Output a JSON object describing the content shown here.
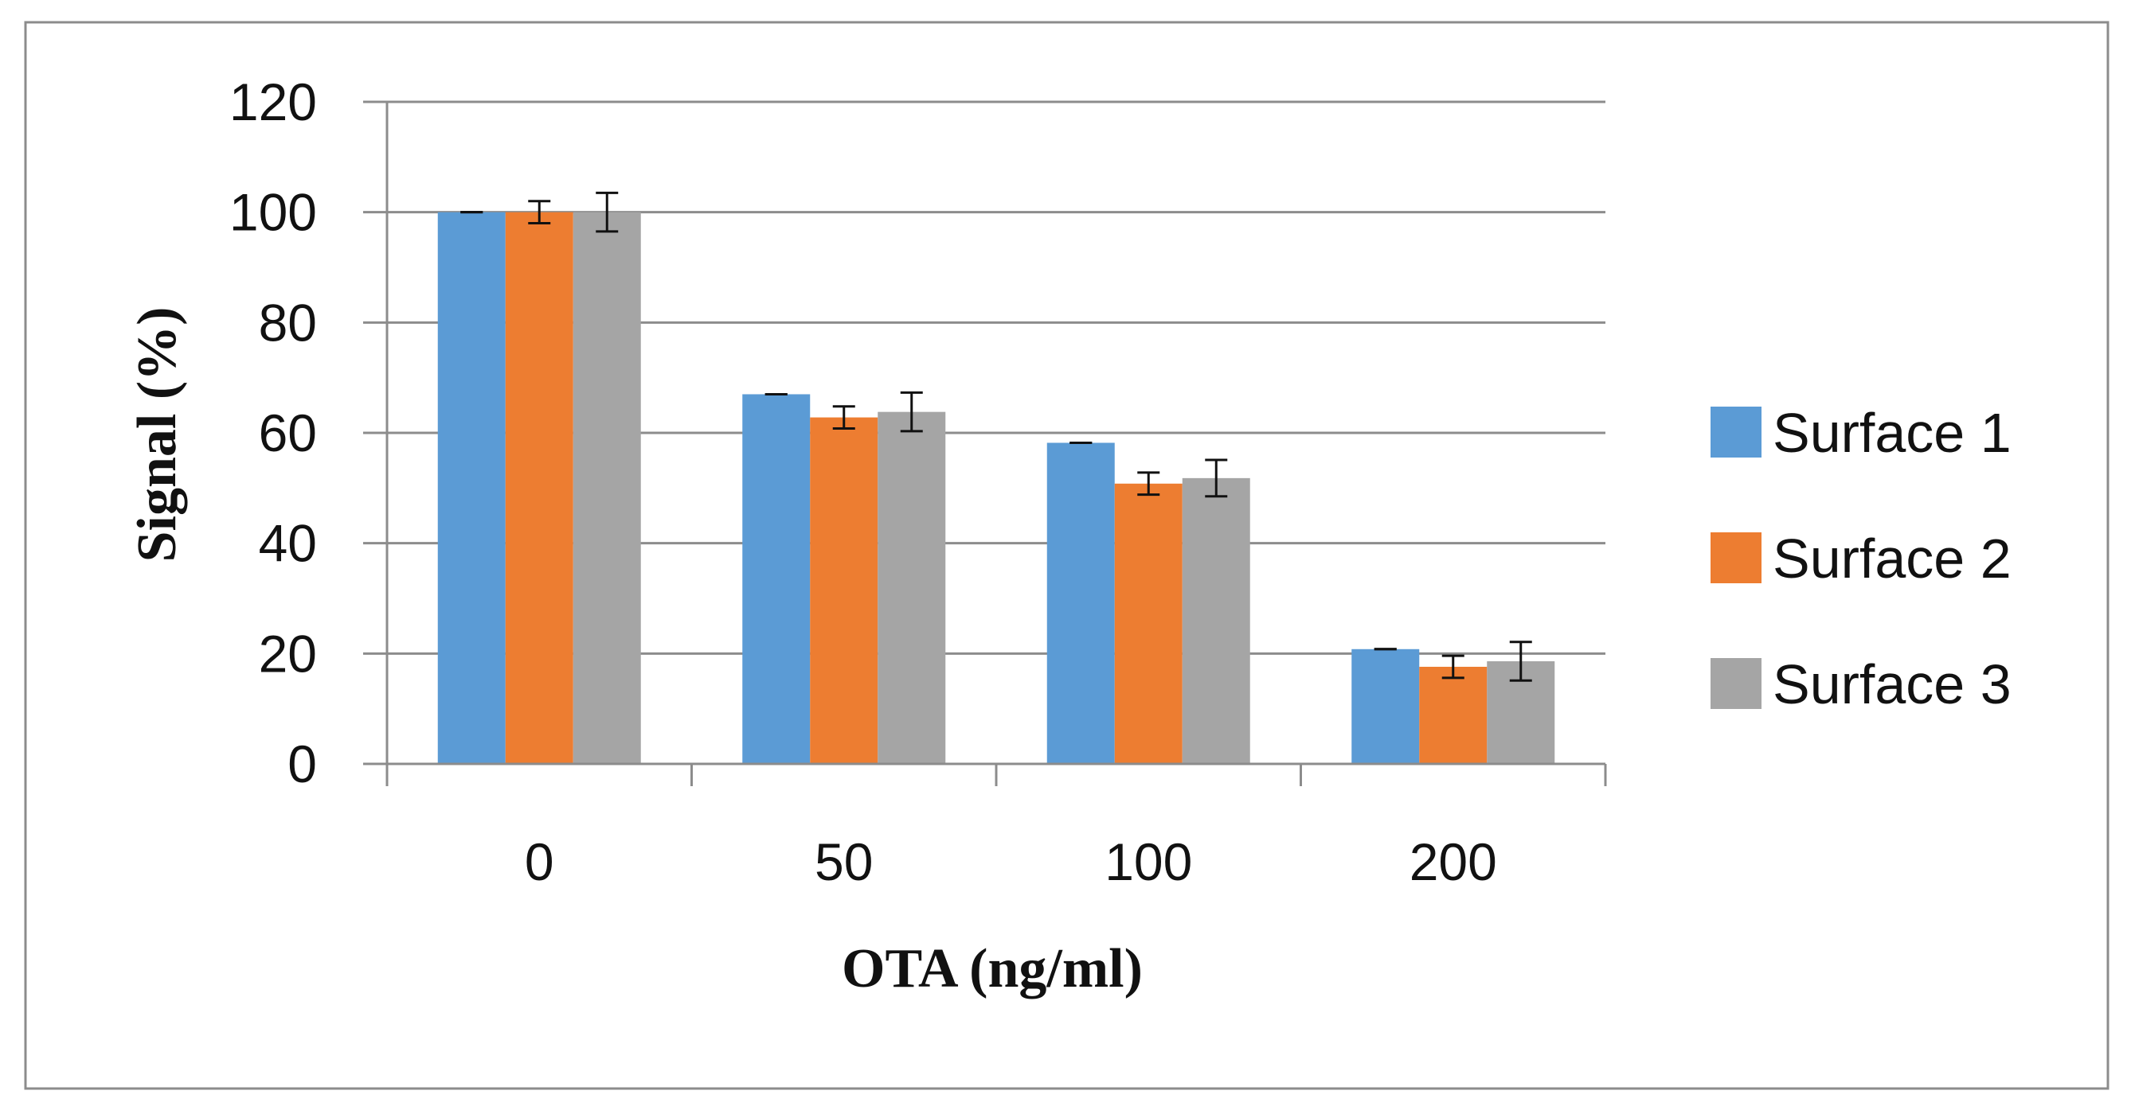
{
  "chart_data": {
    "type": "bar",
    "title": "",
    "xlabel": "OTA (ng/ml)",
    "ylabel": "Signal (%)",
    "ylim": [
      0,
      120
    ],
    "yticks": [
      0,
      20,
      40,
      60,
      80,
      100,
      120
    ],
    "categories": [
      "0",
      "50",
      "100",
      "200"
    ],
    "grid": true,
    "legend_position": "right",
    "series": [
      {
        "name": "Surface 1",
        "color": "#5b9bd5",
        "values": [
          100,
          67,
          58.2,
          20.8
        ],
        "errors": [
          0,
          0,
          0,
          0
        ]
      },
      {
        "name": "Surface 2",
        "color": "#ed7d31",
        "values": [
          100,
          62.8,
          50.8,
          17.6
        ],
        "errors": [
          2,
          2,
          2,
          2
        ]
      },
      {
        "name": "Surface 3",
        "color": "#a5a5a5",
        "values": [
          100,
          63.8,
          51.8,
          18.6
        ],
        "errors": [
          3.5,
          3.5,
          3.3,
          3.5
        ]
      }
    ]
  }
}
